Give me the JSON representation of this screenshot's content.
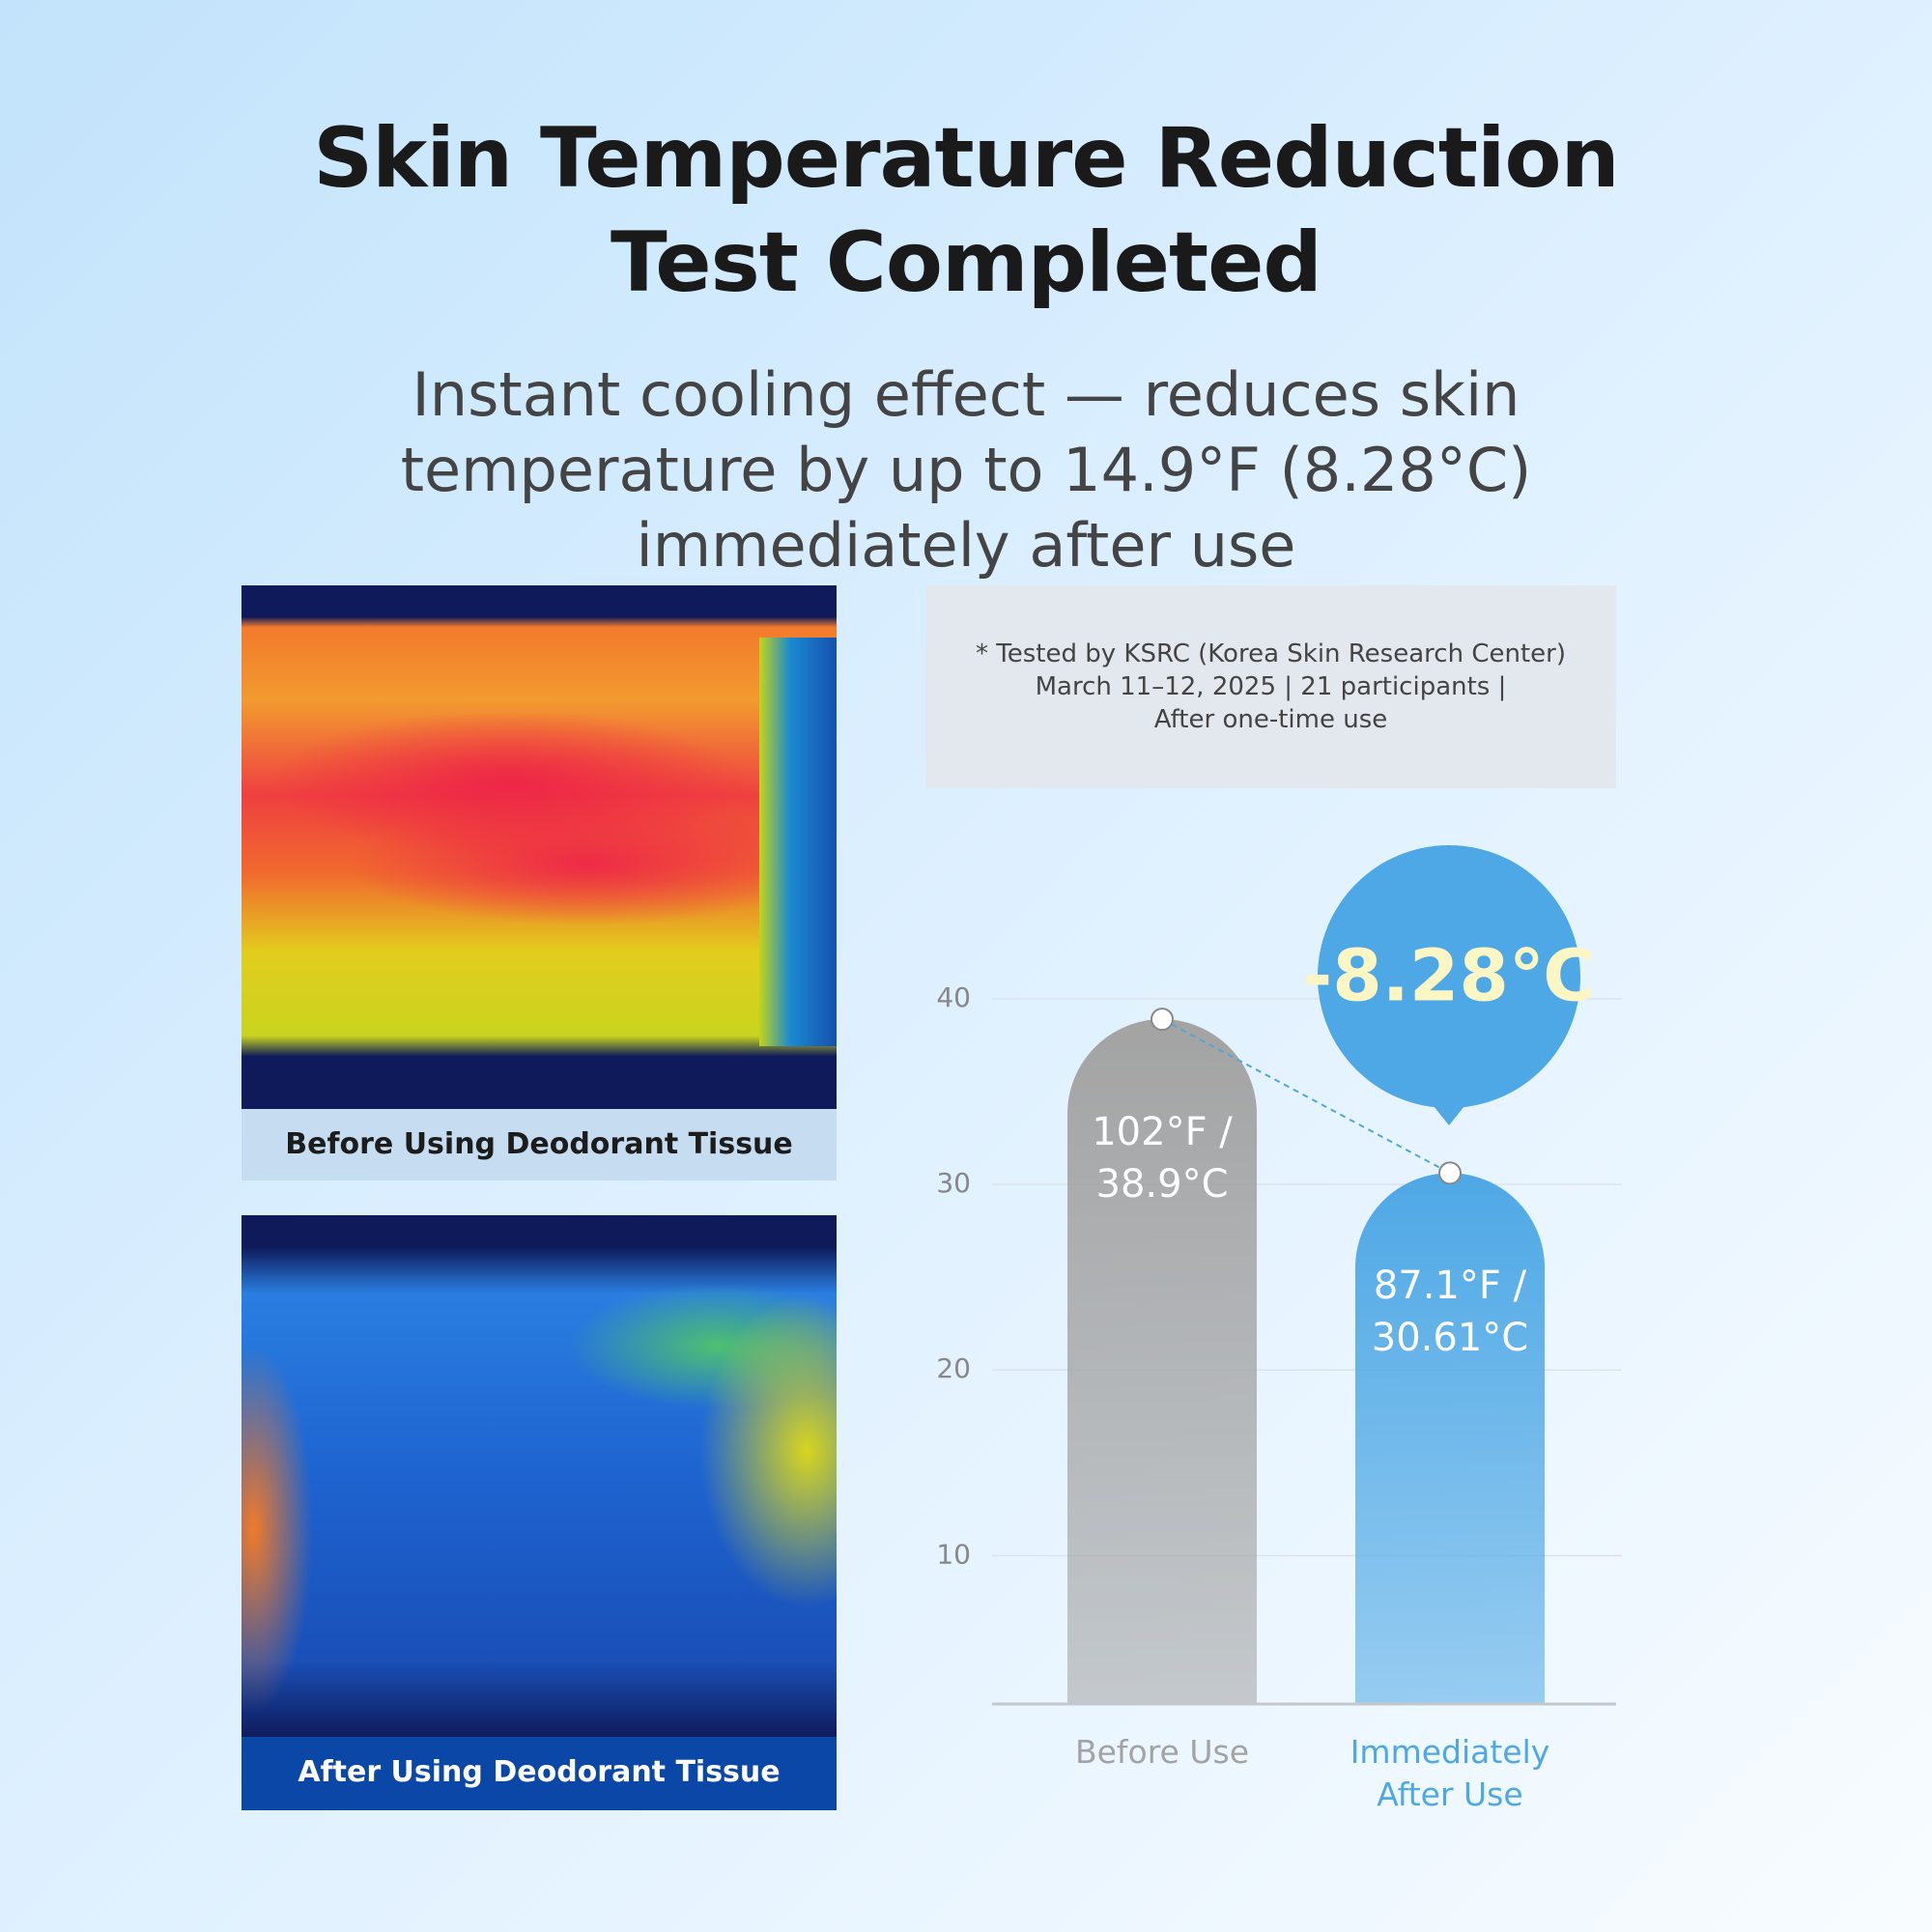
{
  "chart_data": {
    "type": "bar",
    "title": "Skin Temperature Reduction Test Completed",
    "subtitle": "Instant cooling effect — reduces skin temperature by up to 14.9°F (8.28°C) immediately after use",
    "note": [
      "* Tested by KSRC (Korea Skin Research Center)",
      "March 11–12, 2025 | 21 participants |",
      "After one-time use"
    ],
    "annotation": "-8.28℃",
    "categories": [
      "Before Use",
      "Immediately After Use"
    ],
    "values": [
      38.9,
      30.61
    ],
    "value_labels": [
      "102°F / 38.9°C",
      "87.1°F / 30.61°C"
    ],
    "colors": [
      "#a3a3a3",
      "#4ea8e5"
    ],
    "ylim": [
      2,
      40
    ],
    "yticks": [
      10,
      20,
      30,
      40
    ],
    "grid": true
  },
  "panels": [
    {
      "caption": "Before Using Deodorant Tissue"
    },
    {
      "caption": "After Using Deodorant Tissue"
    }
  ]
}
